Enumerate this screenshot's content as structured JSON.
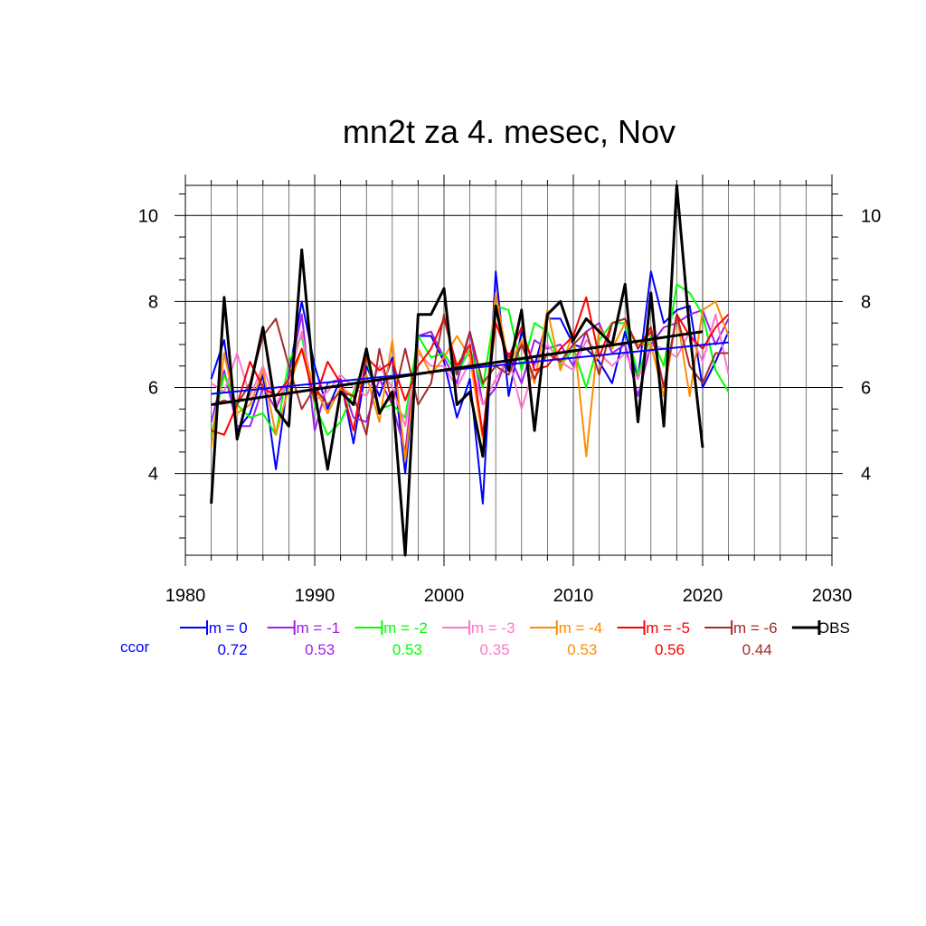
{
  "chart_data": {
    "type": "line",
    "title": "mn2t za 4. mesec, Nov",
    "xlabel": "",
    "ylabel": "",
    "xlim": [
      1980,
      2030
    ],
    "ylim": [
      2.1,
      10.7
    ],
    "x_ticks": [
      1980,
      1990,
      2000,
      2010,
      2020,
      2030
    ],
    "x_tick_labels": [
      "1980",
      "1990",
      "2000",
      "2010",
      "2020",
      "2030"
    ],
    "y_ticks": [
      4,
      6,
      8,
      10
    ],
    "y_tick_labels": [
      "4",
      "6",
      "8",
      "10"
    ],
    "grid": true,
    "legend_position": "bottom",
    "ccor_label": "ccor",
    "x": [
      1982,
      1983,
      1984,
      1985,
      1986,
      1987,
      1988,
      1989,
      1990,
      1991,
      1992,
      1993,
      1994,
      1995,
      1996,
      1997,
      1998,
      1999,
      2000,
      2001,
      2002,
      2003,
      2004,
      2005,
      2006,
      2007,
      2008,
      2009,
      2010,
      2011,
      2012,
      2013,
      2014,
      2015,
      2016,
      2017,
      2018,
      2019,
      2020,
      2021,
      2022
    ],
    "series": [
      {
        "name": "lm = 0",
        "color": "#0000ff",
        "ccor": "0.72",
        "trend": [
          5.85,
          7.05
        ],
        "values": [
          6.2,
          7.1,
          5.0,
          5.4,
          6.3,
          4.1,
          6.3,
          8.0,
          6.5,
          5.5,
          6.2,
          4.7,
          6.5,
          5.8,
          6.7,
          4.0,
          7.2,
          7.2,
          6.6,
          5.3,
          6.2,
          3.3,
          8.7,
          5.8,
          7.3,
          6.5,
          7.6,
          7.6,
          7.0,
          6.9,
          6.6,
          6.1,
          7.3,
          6.2,
          8.7,
          7.5,
          7.8,
          7.9,
          6.0,
          6.6,
          7.3
        ]
      },
      {
        "name": "lm = -1",
        "color": "#a020f0",
        "ccor": "0.53",
        "trend": null,
        "values": [
          5.2,
          6.4,
          5.1,
          5.1,
          6.0,
          5.5,
          6.2,
          7.7,
          5.0,
          6.1,
          6.2,
          5.3,
          5.2,
          6.2,
          5.6,
          4.5,
          7.2,
          7.3,
          6.7,
          6.1,
          7.3,
          5.6,
          6.0,
          6.8,
          6.1,
          7.1,
          6.9,
          7.0,
          6.5,
          7.3,
          7.5,
          6.8,
          7.0,
          5.8,
          7.0,
          7.4,
          7.5,
          7.7,
          7.8,
          7.0,
          7.6
        ]
      },
      {
        "name": "lm = -2",
        "color": "#00ff00",
        "ccor": "0.53",
        "trend": null,
        "values": [
          4.9,
          6.3,
          5.6,
          5.3,
          5.4,
          4.9,
          6.6,
          7.2,
          5.6,
          4.9,
          5.2,
          5.9,
          6.7,
          5.5,
          5.6,
          5.3,
          7.2,
          6.7,
          6.8,
          6.3,
          6.9,
          6.0,
          7.9,
          7.8,
          6.4,
          7.5,
          7.3,
          6.5,
          6.9,
          6.0,
          7.1,
          7.5,
          7.5,
          6.3,
          7.2,
          6.5,
          8.4,
          8.2,
          7.7,
          6.4,
          5.9
        ]
      },
      {
        "name": "lm = -3",
        "color": "#ff77cc",
        "ccor": "0.35",
        "trend": null,
        "values": [
          6.1,
          5.9,
          6.8,
          5.8,
          6.5,
          5.6,
          6.2,
          7.3,
          5.7,
          5.9,
          6.3,
          6.0,
          5.8,
          6.5,
          6.0,
          5.1,
          6.8,
          6.5,
          6.5,
          6.0,
          6.6,
          5.6,
          6.2,
          6.7,
          5.5,
          6.5,
          7.0,
          6.6,
          6.4,
          7.1,
          6.8,
          6.5,
          6.8,
          6.2,
          7.0,
          6.9,
          6.7,
          7.3,
          6.6,
          7.7,
          6.3
        ]
      },
      {
        "name": "lm = -4",
        "color": "#ff8c00",
        "ccor": "0.53",
        "trend": null,
        "values": [
          4.6,
          6.8,
          5.4,
          5.6,
          6.4,
          4.9,
          6.0,
          6.9,
          6.0,
          5.4,
          6.0,
          5.8,
          6.3,
          5.2,
          7.1,
          4.3,
          6.9,
          6.3,
          6.7,
          7.2,
          6.7,
          4.8,
          8.2,
          6.5,
          7.1,
          6.1,
          7.8,
          6.4,
          7.3,
          4.4,
          7.4,
          6.9,
          7.5,
          7.0,
          7.0,
          5.8,
          7.7,
          5.8,
          7.8,
          8.0,
          7.2
        ]
      },
      {
        "name": "lm = -5",
        "color": "#ff0000",
        "ccor": "0.56",
        "trend": null,
        "values": [
          5.0,
          4.9,
          5.6,
          6.6,
          6.0,
          5.8,
          6.2,
          6.9,
          5.7,
          6.6,
          6.1,
          5.0,
          6.7,
          6.4,
          6.6,
          5.7,
          6.5,
          6.9,
          7.6,
          6.5,
          7.0,
          4.9,
          7.5,
          6.7,
          7.4,
          6.4,
          6.5,
          6.9,
          7.2,
          8.1,
          6.7,
          7.5,
          7.6,
          6.9,
          7.4,
          6.0,
          7.7,
          7.2,
          6.9,
          7.4,
          7.7
        ]
      },
      {
        "name": "lm = -6",
        "color": "#a52a2a",
        "ccor": "0.44",
        "trend": null,
        "values": [
          5.6,
          5.7,
          5.6,
          6.1,
          7.2,
          7.6,
          6.5,
          5.5,
          6.0,
          5.6,
          5.9,
          5.8,
          4.9,
          6.9,
          5.6,
          6.9,
          5.6,
          6.1,
          7.7,
          6.3,
          7.3,
          6.1,
          6.5,
          6.3,
          7.0,
          6.2,
          6.8,
          6.6,
          7.0,
          7.3,
          6.3,
          7.5,
          7.6,
          6.9,
          7.3,
          6.0,
          7.7,
          6.5,
          6.1,
          6.8,
          6.8
        ]
      },
      {
        "name": "OBS",
        "color": "#000000",
        "ccor": "",
        "trend": [
          5.6,
          7.3
        ],
        "values": [
          3.3,
          8.1,
          4.8,
          6.0,
          7.4,
          5.5,
          5.1,
          9.2,
          5.9,
          4.1,
          5.9,
          5.6,
          6.9,
          5.4,
          5.9,
          2.1,
          7.7,
          7.7,
          8.3,
          5.6,
          5.9,
          4.4,
          7.9,
          6.4,
          7.8,
          5.0,
          7.7,
          8.0,
          7.1,
          7.6,
          7.3,
          7.0,
          8.4,
          5.2,
          8.2,
          5.1,
          10.7,
          7.3,
          4.6,
          null,
          null
        ]
      }
    ]
  }
}
